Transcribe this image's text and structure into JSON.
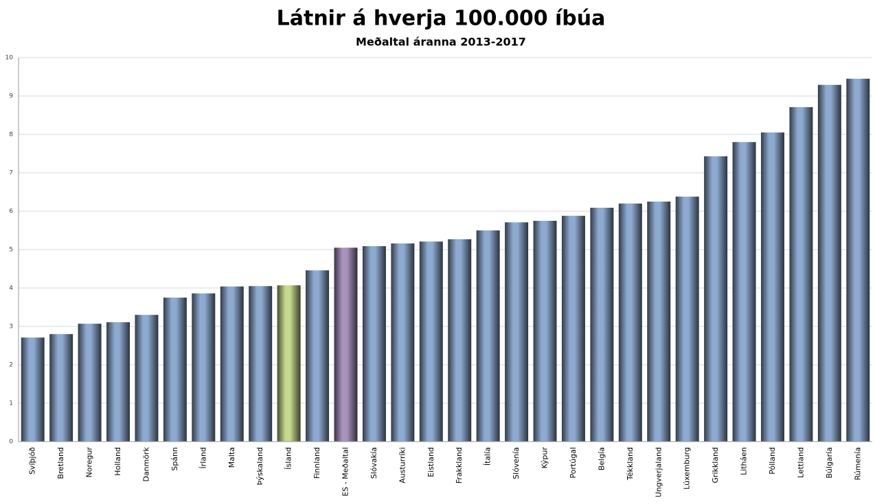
{
  "chart_data": {
    "type": "bar",
    "title": "Látnir á hverja 100.000 íbúa",
    "subtitle": "Meðaltal áranna 2013-2017",
    "categories": [
      "Svíþjóð",
      "Bretland",
      "Noregur",
      "Holland",
      "Danmörk",
      "Spánn",
      "Írland",
      "Malta",
      "Þýskaland",
      "Ísland",
      "Finnland",
      "ES - Meðaltal",
      "Slóvakía",
      "Austurríki",
      "Eistland",
      "Frakkland",
      "Ítalía",
      "Slóvenía",
      "Kýpur",
      "Portúgal",
      "Belgía",
      "Tékkland",
      "Ungverjaland",
      "Lúxemburg",
      "Grikkland",
      "Litháen",
      "Pólland",
      "Lettland",
      "Búlgaría",
      "Rúmenía"
    ],
    "values": [
      2.71,
      2.8,
      3.07,
      3.11,
      3.3,
      3.75,
      3.86,
      4.04,
      4.05,
      4.07,
      4.46,
      5.05,
      5.09,
      5.16,
      5.21,
      5.27,
      5.5,
      5.71,
      5.75,
      5.88,
      6.09,
      6.2,
      6.25,
      6.38,
      7.43,
      7.8,
      8.05,
      8.71,
      9.29,
      9.45
    ],
    "colors": [
      "#8eaad0",
      "#8eaad0",
      "#8eaad0",
      "#8eaad0",
      "#8eaad0",
      "#8eaad0",
      "#8eaad0",
      "#8eaad0",
      "#8eaad0",
      "#c6d98c",
      "#8eaad0",
      "#a893bd",
      "#8eaad0",
      "#8eaad0",
      "#8eaad0",
      "#8eaad0",
      "#8eaad0",
      "#8eaad0",
      "#8eaad0",
      "#8eaad0",
      "#8eaad0",
      "#8eaad0",
      "#8eaad0",
      "#8eaad0",
      "#8eaad0",
      "#8eaad0",
      "#8eaad0",
      "#8eaad0",
      "#8eaad0",
      "#8eaad0"
    ],
    "ylim": [
      0,
      10
    ],
    "yticks": [
      0,
      1,
      2,
      3,
      4,
      5,
      6,
      7,
      8,
      9,
      10
    ],
    "grid": true
  }
}
